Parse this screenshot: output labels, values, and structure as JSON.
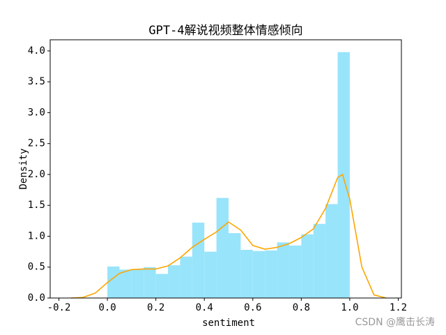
{
  "chart_data": {
    "type": "histogram",
    "title": "GPT-4解说视频整体情感倾向",
    "xlabel": "sentiment",
    "ylabel": "Density",
    "bins": [
      0,
      0.05,
      0.1,
      0.15,
      0.2,
      0.25,
      0.3,
      0.35,
      0.4,
      0.45,
      0.5,
      0.55,
      0.6,
      0.65,
      0.7,
      0.75,
      0.8,
      0.85,
      0.9,
      0.95,
      1.0
    ],
    "values": [
      0.51,
      0.46,
      0.47,
      0.5,
      0.39,
      0.53,
      0.67,
      1.22,
      0.75,
      1.62,
      1.05,
      0.78,
      0.76,
      0.77,
      0.9,
      0.85,
      1.03,
      1.2,
      1.52,
      3.98
    ],
    "color": "#98e4fb",
    "line": {
      "x": [
        -0.15,
        -0.1,
        -0.05,
        0,
        0.05,
        0.1,
        0.15,
        0.2,
        0.25,
        0.3,
        0.35,
        0.4,
        0.45,
        0.5,
        0.55,
        0.6,
        0.65,
        0.7,
        0.75,
        0.8,
        0.85,
        0.9,
        0.95,
        0.97,
        1.0,
        1.05,
        1.1,
        1.15
      ],
      "values": [
        0,
        0.01,
        0.08,
        0.25,
        0.4,
        0.46,
        0.47,
        0.47,
        0.52,
        0.65,
        0.82,
        0.95,
        1.07,
        1.23,
        1.1,
        0.85,
        0.79,
        0.82,
        0.88,
        0.98,
        1.12,
        1.45,
        1.95,
        2.0,
        1.6,
        0.5,
        0.05,
        0
      ],
      "color": "#ffa500"
    },
    "xlim": [
      -0.236,
      1.213
    ],
    "ylim": [
      0,
      4.18
    ],
    "xticks": [
      {
        "value": -0.2,
        "label": "-0.2"
      },
      {
        "value": 0,
        "label": "0.0"
      },
      {
        "value": 0.2,
        "label": "0.2"
      },
      {
        "value": 0.4,
        "label": "0.4"
      },
      {
        "value": 0.6,
        "label": "0.6"
      },
      {
        "value": 0.8,
        "label": "0.8"
      },
      {
        "value": 1.0,
        "label": "1.0"
      },
      {
        "value": 1.2,
        "label": "1.2"
      }
    ],
    "yticks": [
      {
        "value": 0,
        "label": "0.0"
      },
      {
        "value": 0.5,
        "label": "0.5"
      },
      {
        "value": 1.0,
        "label": "1.0"
      },
      {
        "value": 1.5,
        "label": "1.5"
      },
      {
        "value": 2.0,
        "label": "2.0"
      },
      {
        "value": 2.5,
        "label": "2.5"
      },
      {
        "value": 3.0,
        "label": "3.0"
      },
      {
        "value": 3.5,
        "label": "3.5"
      },
      {
        "value": 4.0,
        "label": "4.0"
      }
    ],
    "watermark": "CSDN @鹰击长涛"
  }
}
